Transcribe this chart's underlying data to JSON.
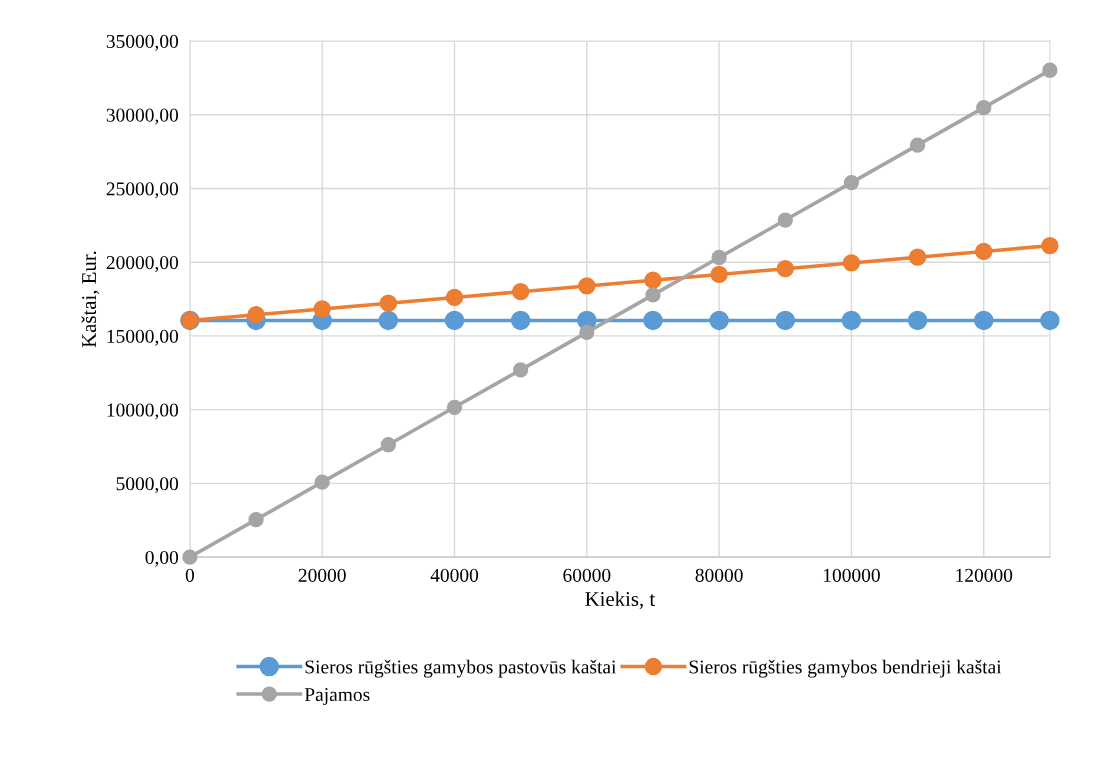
{
  "chart_data": {
    "type": "line",
    "xlabel": "Kiekis, t",
    "ylabel": "Kaštai, Eur.",
    "x": [
      0,
      10000,
      20000,
      30000,
      40000,
      50000,
      60000,
      70000,
      80000,
      90000,
      100000,
      110000,
      120000,
      130000
    ],
    "series": [
      {
        "name": "Sieros rūgšties gamybos pastovūs kaštai",
        "color": "#5b9bd5",
        "values": [
          16050,
          16050,
          16050,
          16050,
          16050,
          16050,
          16050,
          16050,
          16050,
          16050,
          16050,
          16050,
          16050,
          16050
        ]
      },
      {
        "name": "Sieros rūgšties gamybos bendrieji kaštai",
        "color": "#ed7d31",
        "values": [
          16050,
          16440,
          16830,
          17220,
          17610,
          18000,
          18390,
          18780,
          19170,
          19560,
          19950,
          20340,
          20730,
          21120
        ]
      },
      {
        "name": "Pajamos",
        "color": "#a5a5a5",
        "values": [
          0,
          2540,
          5080,
          7620,
          10160,
          12700,
          15240,
          17780,
          20320,
          22860,
          25400,
          27940,
          30480,
          33020
        ]
      }
    ],
    "xlim": [
      0,
      130000
    ],
    "xticks": [
      0,
      20000,
      40000,
      60000,
      80000,
      100000,
      120000
    ],
    "ylim": [
      0,
      35000
    ],
    "yticks": [
      {
        "value": 0,
        "label": "0,00"
      },
      {
        "value": 5000,
        "label": "5000,00"
      },
      {
        "value": 10000,
        "label": "10000,00"
      },
      {
        "value": 15000,
        "label": "15000,00"
      },
      {
        "value": 20000,
        "label": "20000,00"
      },
      {
        "value": 25000,
        "label": "25000,00"
      },
      {
        "value": 30000,
        "label": "30000,00"
      },
      {
        "value": 35000,
        "label": "35000,00"
      }
    ],
    "grid": true,
    "legend": "bottom",
    "marker": "circle",
    "line_style": "solid"
  }
}
